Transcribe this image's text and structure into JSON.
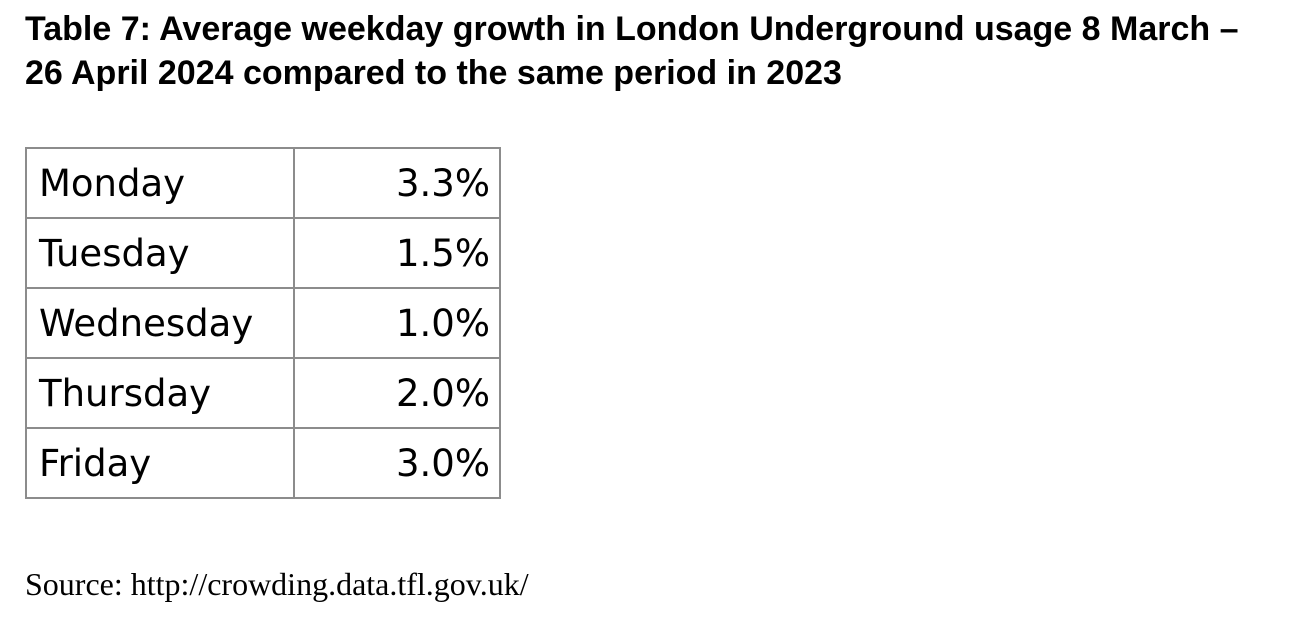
{
  "document": {
    "title": {
      "lines": [
        "Table 7: Average weekday growth in London Underground usage 8 March –",
        "26 April 2024 compared to the same period in 2023"
      ],
      "full": "Table 7: Average weekday growth in London Underground usage 8 March – 26 April 2024 compared to the same period in 2023"
    },
    "source": "Source: http://crowding.data.tfl.gov.uk/"
  },
  "table": {
    "rows": [
      {
        "day": "Monday",
        "value": "3.3%"
      },
      {
        "day": "Tuesday",
        "value": "1.5%"
      },
      {
        "day": "Wednesday",
        "value": "1.0%"
      },
      {
        "day": "Thursday",
        "value": "2.0%"
      },
      {
        "day": "Friday",
        "value": "3.0%"
      }
    ]
  },
  "colors": {
    "background": "#ffffff",
    "text": "#000000",
    "table_border": "#8c8c8c"
  }
}
